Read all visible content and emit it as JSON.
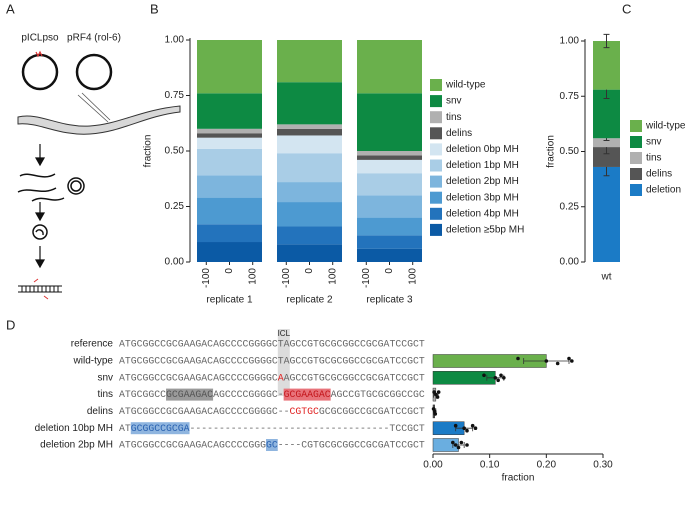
{
  "panel_labels": [
    "A",
    "B",
    "C",
    "D"
  ],
  "panel_a": {
    "plasmids": [
      "pICLpso",
      "pRF4 (rol-6)"
    ]
  },
  "alignment": {
    "reference_label": "reference",
    "reference": "ATGCGGCCGCGAAGACAGCCCCGGGGCTAGCCGTGCGCGGCCGCGATCCGCT",
    "annotation": "ICL",
    "rows": [
      [
        {
          "text": "ATGCGGCCGCGAAGACAGCCCCGGGGCTAGCCGTGCGCGGCCGCGATCCGCT"
        }
      ],
      [
        {
          "text": "ATGCGGCCGCGAAGACAGCCCCGGGGC"
        },
        {
          "text": "A",
          "mark": "red"
        },
        {
          "text": "AGCCGTGCGCGGCCGCGATCCGCT"
        }
      ],
      [
        {
          "text": "ATGCGGCC"
        },
        {
          "text": "GCGAAGAC",
          "mark": "gray-box"
        },
        {
          "text": "AGCCCCGGGGC-"
        },
        {
          "text": "GCGAAGAC",
          "mark": "red-box"
        },
        {
          "text": "AGCCGTGCGCGGCCGC"
        }
      ],
      [
        {
          "text": "ATGCGGCCGCGAAGACAGCCCCGGGGC--"
        },
        {
          "text": "CGTGC",
          "mark": "red"
        },
        {
          "text": "GCGCGGCCGCGATCCGCT"
        }
      ],
      [
        {
          "text": "AT"
        },
        {
          "text": "GCGGCCGCGA",
          "mark": "blue-box"
        },
        {
          "text": "----------------------------------TCCGCT"
        }
      ],
      [
        {
          "text": "ATGCGGCCGCGAAGACAGCCCCGGG"
        },
        {
          "text": "GC",
          "mark": "blue-box"
        },
        {
          "text": "----CGTGCGCGGCCGCGATCCGCT"
        }
      ]
    ]
  },
  "chart_data": [
    {
      "type": "stacked_bar",
      "ylabel": "fraction",
      "categories": [
        "replicate 1",
        "replicate 2",
        "replicate 3"
      ],
      "xlim": [
        -140,
        140
      ],
      "xticks": [
        -100,
        0,
        100
      ],
      "ylim": [
        0,
        1
      ],
      "yticks": [
        {
          "value": 0,
          "label": "0.00"
        },
        {
          "value": 0.25,
          "label": "0.25"
        },
        {
          "value": 0.5,
          "label": "0.50"
        },
        {
          "value": 0.75,
          "label": "0.75"
        },
        {
          "value": 1,
          "label": "1.00"
        }
      ],
      "series": [
        {
          "name": "deletion ≥5bp MH",
          "color": "#0b5aa5",
          "values": [
            0.09,
            0.08,
            0.06
          ]
        },
        {
          "name": "deletion 4bp MH",
          "color": "#2373bc",
          "values": [
            0.08,
            0.08,
            0.06
          ]
        },
        {
          "name": "deletion 3bp MH",
          "color": "#4d9ad1",
          "values": [
            0.12,
            0.11,
            0.08
          ]
        },
        {
          "name": "deletion 2bp MH",
          "color": "#7db5dd",
          "values": [
            0.1,
            0.09,
            0.1
          ]
        },
        {
          "name": "deletion 1bp MH",
          "color": "#a9cde6",
          "values": [
            0.12,
            0.13,
            0.1
          ]
        },
        {
          "name": "deletion 0bp MH",
          "color": "#d3e5f1",
          "values": [
            0.05,
            0.08,
            0.06
          ]
        },
        {
          "name": "delins",
          "color": "#555555",
          "values": [
            0.02,
            0.03,
            0.02
          ]
        },
        {
          "name": "tins",
          "color": "#b0b0b0",
          "values": [
            0.02,
            0.02,
            0.02
          ]
        },
        {
          "name": "snv",
          "color": "#0d8a43",
          "values": [
            0.16,
            0.19,
            0.26
          ]
        },
        {
          "name": "wild-type",
          "color": "#6ab04c",
          "values": [
            0.24,
            0.19,
            0.24
          ]
        }
      ]
    },
    {
      "type": "stacked_bar",
      "ylabel": "fraction",
      "categories": [
        "wt"
      ],
      "ylim": [
        0,
        1
      ],
      "yticks": [
        {
          "value": 0,
          "label": "0.00"
        },
        {
          "value": 0.25,
          "label": "0.25"
        },
        {
          "value": 0.5,
          "label": "0.50"
        },
        {
          "value": 0.75,
          "label": "0.75"
        },
        {
          "value": 1,
          "label": "1.00"
        }
      ],
      "series": [
        {
          "name": "deletion",
          "color": "#1b7bc6",
          "values": [
            0.43
          ],
          "errors": [
            0.04
          ]
        },
        {
          "name": "delins",
          "color": "#555555",
          "values": [
            0.09
          ],
          "errors": [
            0.03
          ]
        },
        {
          "name": "tins",
          "color": "#b0b0b0",
          "values": [
            0.04
          ],
          "errors": [
            0.01
          ]
        },
        {
          "name": "snv",
          "color": "#0d8a43",
          "values": [
            0.22
          ],
          "errors": [
            0.04
          ]
        },
        {
          "name": "wild-type",
          "color": "#6ab04c",
          "values": [
            0.22
          ],
          "errors": [
            0.03
          ]
        }
      ]
    },
    {
      "type": "hbar",
      "xlabel": "fraction",
      "categories": [
        "wild-type",
        "snv",
        "tins",
        "delins",
        "deletion 10bp MH",
        "deletion 2bp MH"
      ],
      "values": [
        0.2,
        0.11,
        0.005,
        0.003,
        0.055,
        0.045
      ],
      "errors": [
        0.04,
        0.015,
        0.004,
        0.002,
        0.015,
        0.01
      ],
      "points": [
        [
          0.15,
          0.2,
          0.22,
          0.24,
          0.245
        ],
        [
          0.09,
          0.11,
          0.115,
          0.12,
          0.125
        ],
        [
          0.002,
          0.005,
          0.008,
          0.01
        ],
        [
          0.001,
          0.003,
          0.004
        ],
        [
          0.04,
          0.055,
          0.06,
          0.07,
          0.075
        ],
        [
          0.035,
          0.04,
          0.045,
          0.05,
          0.06
        ]
      ],
      "colors": [
        "#6ab04c",
        "#0d8a43",
        "#b0b0b0",
        "#555555",
        "#1b7bc6",
        "#6aaee0"
      ],
      "xlim": [
        0,
        0.3
      ],
      "xticks": [
        {
          "value": 0,
          "label": "0.00"
        },
        {
          "value": 0.1,
          "label": "0.10"
        },
        {
          "value": 0.2,
          "label": "0.20"
        },
        {
          "value": 0.3,
          "label": "0.30"
        }
      ]
    }
  ]
}
